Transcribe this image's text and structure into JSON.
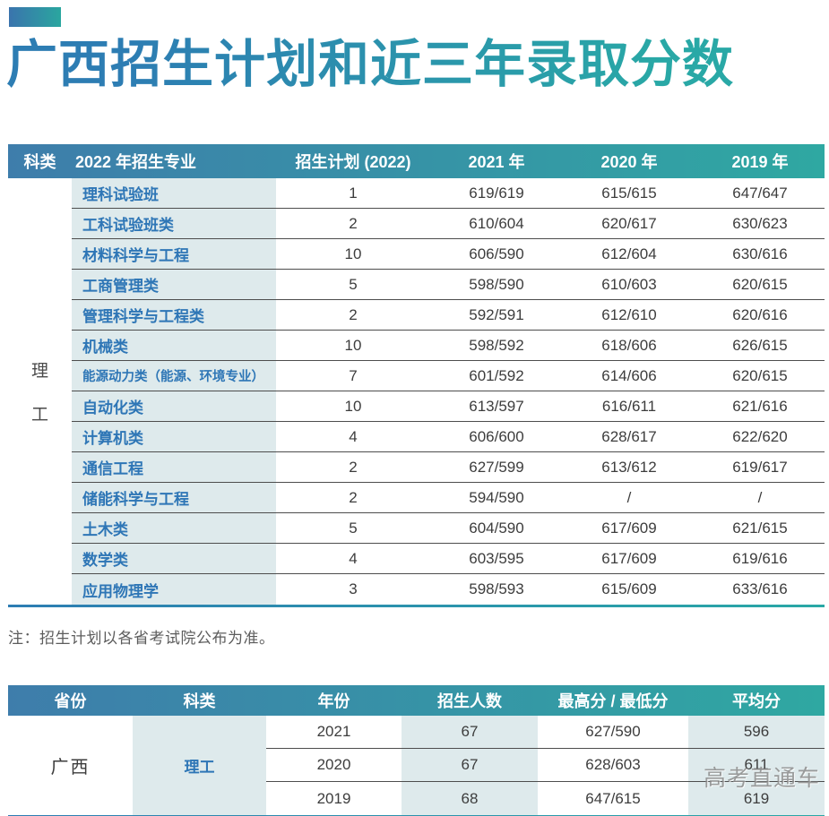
{
  "page": {
    "title": "广西招生计划和近三年录取分数",
    "note": "注：招生计划以各省考试院公布为准。",
    "watermark": "高考直通车"
  },
  "colors": {
    "header_gradient_start": "#3e7dab",
    "header_gradient_end": "#2fa8a2",
    "title_gradient_start": "#2d7db3",
    "title_gradient_end": "#29a8a6",
    "light_teal_cell": "#deeaec",
    "major_text_blue": "#2e76b6",
    "body_text": "#3d3d3d"
  },
  "plan_table": {
    "columns": [
      "科类",
      "2022 年招生专业",
      "招生计划 (2022)",
      "2021 年",
      "2020 年",
      "2019 年"
    ],
    "category_chars": [
      "理",
      "工"
    ],
    "rows": [
      {
        "major": "理科试验班",
        "plan": "1",
        "y2021": "619/619",
        "y2020": "615/615",
        "y2019": "647/647"
      },
      {
        "major": "工科试验班类",
        "plan": "2",
        "y2021": "610/604",
        "y2020": "620/617",
        "y2019": "630/623"
      },
      {
        "major": "材料科学与工程",
        "plan": "10",
        "y2021": "606/590",
        "y2020": "612/604",
        "y2019": "630/616"
      },
      {
        "major": "工商管理类",
        "plan": "5",
        "y2021": "598/590",
        "y2020": "610/603",
        "y2019": "620/615"
      },
      {
        "major": "管理科学与工程类",
        "plan": "2",
        "y2021": "592/591",
        "y2020": "612/610",
        "y2019": "620/616"
      },
      {
        "major": "机械类",
        "plan": "10",
        "y2021": "598/592",
        "y2020": "618/606",
        "y2019": "626/615"
      },
      {
        "major": "能源动力类（能源、环境专业）",
        "plan": "7",
        "y2021": "601/592",
        "y2020": "614/606",
        "y2019": "620/615"
      },
      {
        "major": "自动化类",
        "plan": "10",
        "y2021": "613/597",
        "y2020": "616/611",
        "y2019": "621/616"
      },
      {
        "major": "计算机类",
        "plan": "4",
        "y2021": "606/600",
        "y2020": "628/617",
        "y2019": "622/620"
      },
      {
        "major": "通信工程",
        "plan": "2",
        "y2021": "627/599",
        "y2020": "613/612",
        "y2019": "619/617"
      },
      {
        "major": "储能科学与工程",
        "plan": "2",
        "y2021": "594/590",
        "y2020": "/",
        "y2019": "/"
      },
      {
        "major": "土木类",
        "plan": "5",
        "y2021": "604/590",
        "y2020": "617/609",
        "y2019": "621/615"
      },
      {
        "major": "数学类",
        "plan": "4",
        "y2021": "603/595",
        "y2020": "617/609",
        "y2019": "619/616"
      },
      {
        "major": "应用物理学",
        "plan": "3",
        "y2021": "598/593",
        "y2020": "615/609",
        "y2019": "633/616"
      }
    ]
  },
  "province_table": {
    "columns": [
      "省份",
      "科类",
      "年份",
      "招生人数",
      "最高分 / 最低分",
      "平均分"
    ],
    "province": "广西",
    "category": "理工",
    "rows": [
      {
        "year": "2021",
        "count": "67",
        "scores": "627/590",
        "avg": "596"
      },
      {
        "year": "2020",
        "count": "67",
        "scores": "628/603",
        "avg": "611"
      },
      {
        "year": "2019",
        "count": "68",
        "scores": "647/615",
        "avg": "619"
      }
    ]
  }
}
